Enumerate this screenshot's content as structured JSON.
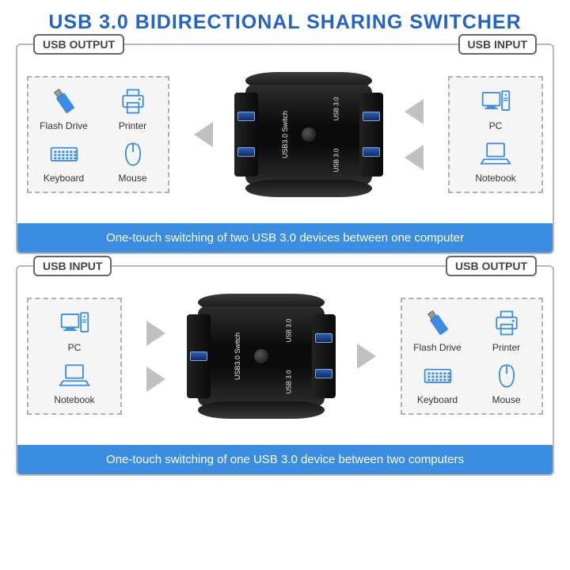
{
  "title": "USB 3.0 BIDIRECTIONAL SHARING SWITCHER",
  "title_color": "#2262c9",
  "section_border": "#b8b8b8",
  "caption_bg": "#3a8de0",
  "pill": {
    "output": "USB OUTPUT",
    "input": "USB INPUT"
  },
  "devices": {
    "flash": "Flash Drive",
    "printer": "Printer",
    "keyboard": "Keyboard",
    "mouse": "Mouse",
    "pc": "PC",
    "notebook": "Notebook"
  },
  "switch": {
    "left_label": "USB3.0 Switch",
    "port_label": "USB 3.0"
  },
  "section1": {
    "left_pill": "output",
    "right_pill": "input",
    "left_devices": [
      "flash",
      "printer",
      "keyboard",
      "mouse"
    ],
    "right_devices": [
      "pc",
      "notebook"
    ],
    "left_ports": 2,
    "right_ports": 2,
    "arrow_dir": "left",
    "caption": "One-touch switching of two USB 3.0 devices between one computer"
  },
  "section2": {
    "left_pill": "input",
    "right_pill": "output",
    "left_devices": [
      "pc",
      "notebook"
    ],
    "right_devices": [
      "flash",
      "printer",
      "keyboard",
      "mouse"
    ],
    "left_ports": 1,
    "right_ports": 2,
    "arrow_dir": "right",
    "caption": "One-touch switching of one USB 3.0 device between two computers"
  },
  "icon_color": "#3a8de0"
}
